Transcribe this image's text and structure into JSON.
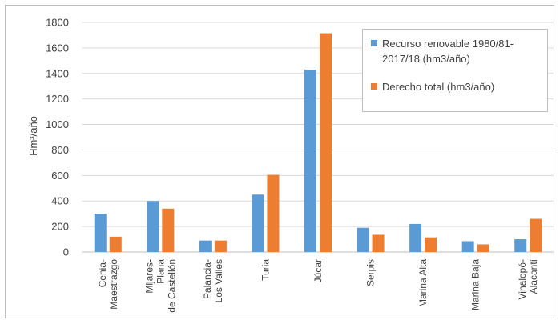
{
  "chart_data": {
    "type": "bar",
    "title": "",
    "xlabel": "",
    "ylabel": "Hm³/año",
    "ylim": [
      0,
      1800
    ],
    "yticks": [
      0,
      200,
      400,
      600,
      800,
      1000,
      1200,
      1400,
      1600,
      1800
    ],
    "grid": true,
    "legend_position": "top-right",
    "categories": [
      "Cenia-\nMaestrazgo",
      "Mijares-\nPlana\nde Castellón",
      "Palancia-\nLos Valles",
      "Turia",
      "Júcar",
      "Serpis",
      "Marina Alta",
      "Marina Baja",
      "Vinalopó-\nAlacantí"
    ],
    "series": [
      {
        "name": "Recurso renovable 1980/81-\n2017/18 (hm3/año)",
        "color": "#5b9bd5",
        "values": [
          300,
          400,
          90,
          450,
          1430,
          190,
          220,
          85,
          100
        ]
      },
      {
        "name": "Derecho total (hm3/año)",
        "color": "#ed7d31",
        "values": [
          120,
          340,
          90,
          605,
          1715,
          135,
          115,
          60,
          260
        ]
      }
    ]
  }
}
